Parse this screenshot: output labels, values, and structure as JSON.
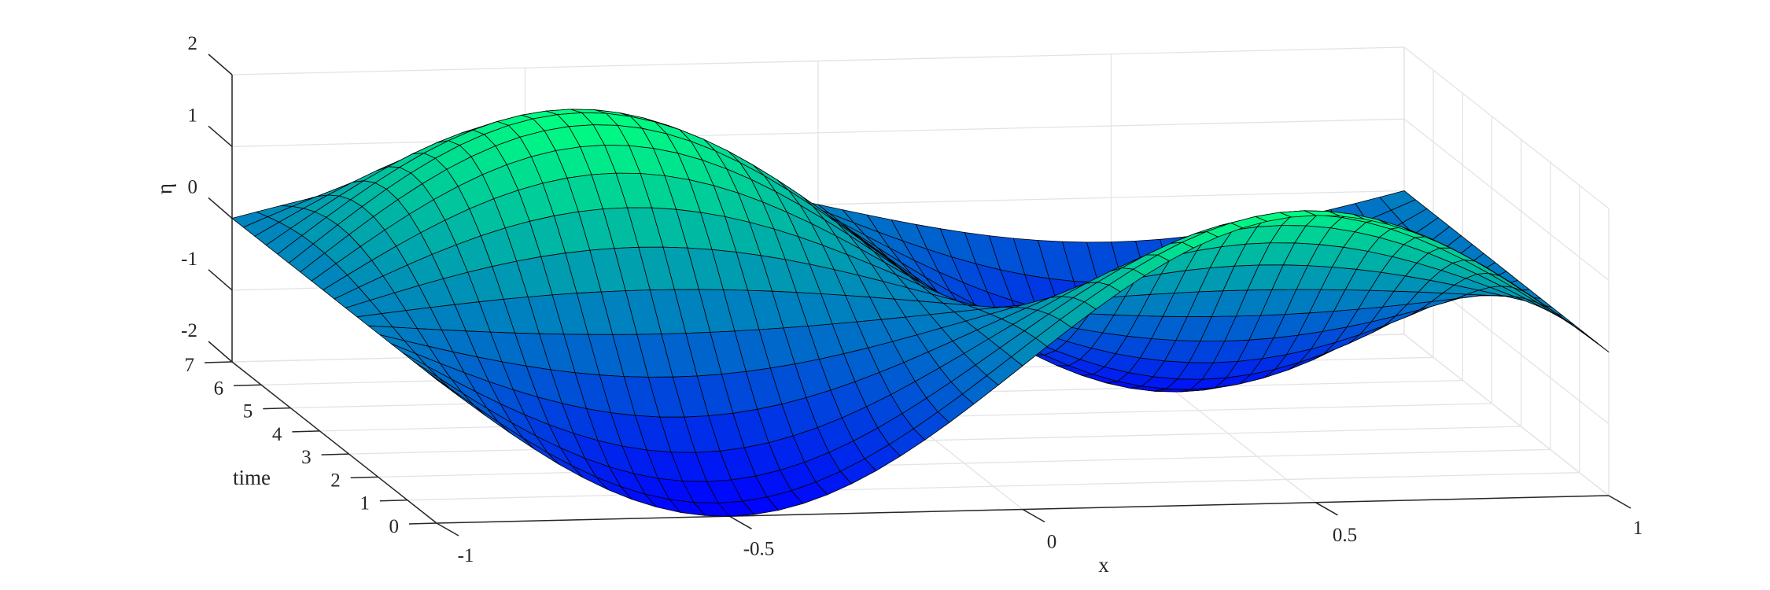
{
  "chart_data": {
    "type": "surface",
    "surface_function": "sin(pi*(x - 0.2*time)) + sin(pi*(x + 0.2*time))",
    "colormap": [
      "#0000ff",
      "#00ff80"
    ],
    "grid": true,
    "x": {
      "label": "x",
      "lim": [
        -1,
        1
      ],
      "ticks": [
        -1,
        -0.5,
        0,
        0.5,
        1
      ],
      "tick_labels": [
        "-1",
        "-0.5",
        "0",
        "0.5",
        "1"
      ],
      "mesh_lines": 49
    },
    "y": {
      "label": "time",
      "lim": [
        0,
        7
      ],
      "ticks": [
        0,
        1,
        2,
        3,
        4,
        5,
        6,
        7
      ],
      "tick_labels": [
        "0",
        "1",
        "2",
        "3",
        "4",
        "5",
        "6",
        "7"
      ],
      "mesh_lines": 19
    },
    "z": {
      "label": "η",
      "lim": [
        -2,
        2
      ],
      "ticks": [
        -2,
        -1,
        0,
        1,
        2
      ],
      "tick_labels": [
        "-2",
        "-1",
        "0",
        "1",
        "2"
      ]
    }
  }
}
